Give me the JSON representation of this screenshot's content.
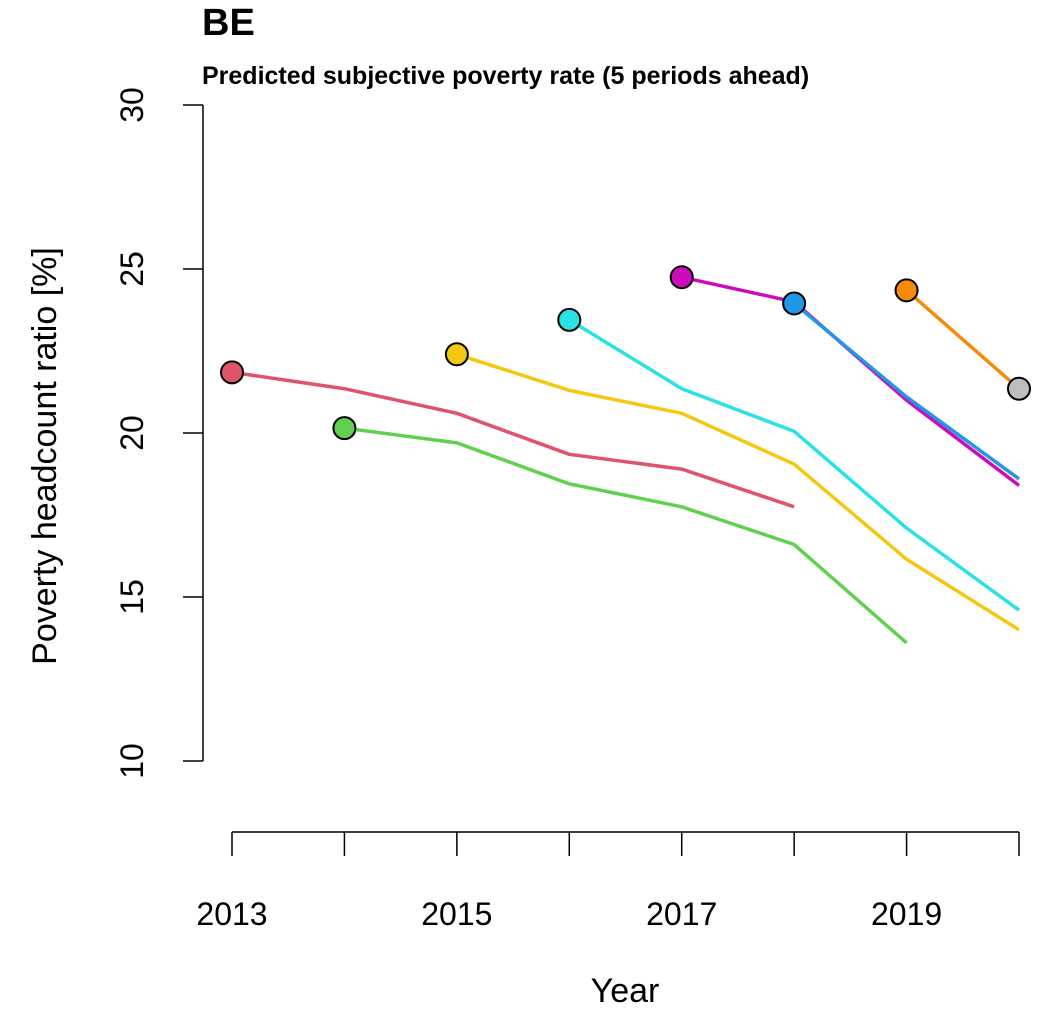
{
  "chart_data": {
    "type": "line",
    "title": "BE",
    "subtitle": "Predicted subjective poverty rate (5 periods ahead)",
    "xlabel": "Year",
    "ylabel": "Poverty headcount ratio [%]",
    "xlim": [
      2013,
      2020
    ],
    "ylim": [
      10,
      30
    ],
    "x_ticks": [
      2013,
      2014,
      2015,
      2016,
      2017,
      2018,
      2019,
      2020
    ],
    "x_tick_labels": [
      "2013",
      "",
      "2015",
      "",
      "2017",
      "",
      "2019",
      ""
    ],
    "y_ticks": [
      10,
      15,
      20,
      25,
      30
    ],
    "y_tick_labels": [
      "10",
      "15",
      "20",
      "25",
      "30"
    ],
    "grid": false,
    "legend": "none",
    "series": [
      {
        "color": "#DF536B",
        "x": [
          2013,
          2014,
          2015,
          2016,
          2017,
          2018
        ],
        "y": [
          21.85,
          21.35,
          20.6,
          19.35,
          18.9,
          17.75
        ]
      },
      {
        "color": "#61D04F",
        "x": [
          2014,
          2015,
          2016,
          2017,
          2018,
          2019
        ],
        "y": [
          20.15,
          19.7,
          18.45,
          17.75,
          16.6,
          13.6
        ]
      },
      {
        "color": "#F5C710",
        "x": [
          2015,
          2016,
          2017,
          2018,
          2019,
          2020
        ],
        "y": [
          22.4,
          21.3,
          20.6,
          19.05,
          16.15,
          14.0
        ]
      },
      {
        "color": "#28E2E5",
        "x": [
          2016,
          2017,
          2018,
          2019,
          2020
        ],
        "y": [
          23.45,
          21.35,
          20.05,
          17.1,
          14.6
        ]
      },
      {
        "color": "#CD0BBC",
        "x": [
          2017,
          2018,
          2019,
          2020
        ],
        "y": [
          24.75,
          24.0,
          21.0,
          18.4
        ]
      },
      {
        "color": "#2297E6",
        "x": [
          2018,
          2019,
          2020
        ],
        "y": [
          23.95,
          21.1,
          18.6
        ]
      },
      {
        "color": "#F58A0B",
        "x": [
          2019,
          2020
        ],
        "y": [
          24.35,
          21.35
        ]
      },
      {
        "color": "#BEBEBE",
        "x": [
          2020
        ],
        "y": [
          21.35
        ]
      }
    ]
  }
}
